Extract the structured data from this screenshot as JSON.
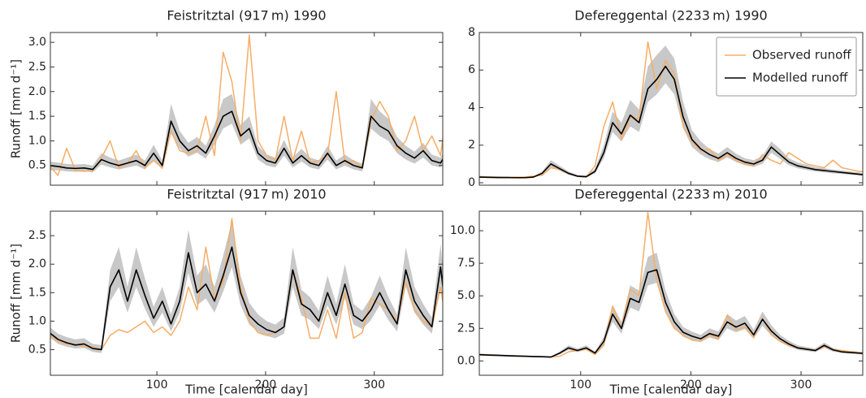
{
  "chart_data": [
    {
      "type": "line",
      "title": "Feistritztal (917 m) 1990",
      "ylabel": "Runoff [mm d⁻¹]",
      "xlim": [
        2,
        363
      ],
      "xticks": [
        100,
        200,
        300
      ],
      "xtick_labels": false,
      "ylim": [
        0.1,
        3.2
      ],
      "yticks": [
        0.5,
        {
          "value": 1,
          "label": "1.0"
        },
        1.5,
        {
          "value": 2,
          "label": "2.0"
        },
        2.5,
        {
          "value": 3,
          "label": "3.0"
        }
      ],
      "x": [
        1,
        9,
        17,
        25,
        33,
        41,
        49,
        57,
        65,
        73,
        81,
        89,
        97,
        105,
        113,
        121,
        129,
        137,
        145,
        153,
        161,
        169,
        177,
        185,
        193,
        201,
        209,
        217,
        225,
        233,
        241,
        249,
        257,
        265,
        273,
        281,
        289,
        297,
        305,
        313,
        321,
        329,
        337,
        345,
        353,
        361,
        365
      ],
      "band": {
        "color": "#c8c8c8",
        "lower": [
          0.4,
          0.4,
          0.38,
          0.37,
          0.38,
          0.36,
          0.52,
          0.46,
          0.42,
          0.46,
          0.5,
          0.42,
          0.62,
          0.42,
          1.15,
          0.85,
          0.68,
          0.76,
          0.64,
          0.92,
          1.25,
          1.35,
          0.92,
          1.05,
          0.62,
          0.5,
          0.46,
          0.7,
          0.46,
          0.58,
          0.46,
          0.42,
          0.62,
          0.42,
          0.5,
          0.42,
          0.38,
          1.25,
          1.1,
          1.0,
          0.75,
          0.62,
          0.54,
          0.66,
          0.5,
          0.46,
          0.58
        ],
        "upper": [
          0.58,
          0.56,
          0.53,
          0.52,
          0.53,
          0.5,
          0.75,
          0.66,
          0.6,
          0.66,
          0.72,
          0.6,
          0.92,
          0.6,
          1.75,
          1.2,
          0.96,
          1.08,
          0.9,
          1.32,
          1.85,
          1.95,
          1.32,
          1.5,
          0.9,
          0.72,
          0.66,
          1.02,
          0.66,
          0.84,
          0.66,
          0.6,
          0.9,
          0.6,
          0.72,
          0.6,
          0.54,
          1.85,
          1.6,
          1.45,
          1.08,
          0.9,
          0.78,
          0.96,
          0.72,
          0.66,
          0.84
        ]
      },
      "series": [
        {
          "color": "#f5ad66",
          "values": [
            0.5,
            0.3,
            0.85,
            0.4,
            0.38,
            0.4,
            0.65,
            1.0,
            0.45,
            0.55,
            0.8,
            0.45,
            0.6,
            0.45,
            1.2,
            0.8,
            0.75,
            0.8,
            1.5,
            0.7,
            2.8,
            2.2,
            1.0,
            3.15,
            1.0,
            0.7,
            0.6,
            1.5,
            0.6,
            1.2,
            0.55,
            0.6,
            0.7,
            2.0,
            0.55,
            0.6,
            0.45,
            1.4,
            1.8,
            1.5,
            0.8,
            1.0,
            1.5,
            0.8,
            1.1,
            0.7,
            1.4
          ]
        },
        {
          "color": "#000000",
          "values": [
            0.5,
            0.48,
            0.45,
            0.44,
            0.45,
            0.42,
            0.62,
            0.55,
            0.5,
            0.55,
            0.6,
            0.5,
            0.75,
            0.5,
            1.4,
            1.0,
            0.8,
            0.9,
            0.75,
            1.1,
            1.5,
            1.6,
            1.1,
            1.25,
            0.75,
            0.6,
            0.55,
            0.85,
            0.55,
            0.7,
            0.55,
            0.5,
            0.75,
            0.5,
            0.6,
            0.5,
            0.45,
            1.5,
            1.3,
            1.2,
            0.9,
            0.75,
            0.65,
            0.8,
            0.6,
            0.55,
            0.7
          ]
        }
      ]
    },
    {
      "type": "line",
      "title": "Defereggental (2233 m) 1990",
      "xlim": [
        8,
        356
      ],
      "xticks": [
        100,
        200,
        300
      ],
      "xtick_labels": false,
      "ylim": [
        -0.13,
        8
      ],
      "yticks": [
        0,
        2,
        4,
        6,
        8
      ],
      "legend": "upper right",
      "x": [
        1,
        9,
        17,
        25,
        33,
        41,
        49,
        57,
        65,
        73,
        81,
        89,
        97,
        105,
        113,
        121,
        129,
        137,
        145,
        153,
        161,
        169,
        177,
        185,
        193,
        201,
        209,
        217,
        225,
        233,
        241,
        249,
        257,
        265,
        273,
        281,
        289,
        297,
        305,
        313,
        321,
        329,
        337,
        345,
        353,
        361,
        365
      ],
      "band": {
        "color": "#c8c8c8",
        "lower": [
          0.26,
          0.26,
          0.25,
          0.24,
          0.24,
          0.23,
          0.23,
          0.26,
          0.42,
          0.85,
          0.64,
          0.42,
          0.3,
          0.27,
          0.5,
          1.3,
          2.7,
          2.2,
          3.0,
          2.7,
          4.3,
          4.7,
          5.3,
          4.7,
          2.9,
          1.9,
          1.5,
          1.25,
          1.1,
          1.35,
          1.1,
          0.93,
          0.85,
          1.0,
          1.6,
          1.27,
          0.93,
          0.76,
          0.68,
          0.6,
          0.55,
          0.5,
          0.47,
          0.42,
          0.38,
          0.34,
          0.32
        ],
        "upper": [
          0.35,
          0.35,
          0.34,
          0.33,
          0.33,
          0.32,
          0.32,
          0.35,
          0.6,
          1.2,
          0.9,
          0.6,
          0.42,
          0.38,
          0.75,
          2.0,
          3.8,
          3.2,
          4.4,
          3.9,
          6.2,
          6.8,
          7.3,
          6.6,
          4.3,
          2.8,
          2.2,
          1.8,
          1.55,
          1.9,
          1.55,
          1.3,
          1.2,
          1.42,
          2.2,
          1.8,
          1.3,
          1.08,
          0.95,
          0.83,
          0.77,
          0.71,
          0.65,
          0.6,
          0.54,
          0.48,
          0.45
        ]
      },
      "series": [
        {
          "name": "Observed runoff",
          "color": "#f5ad66",
          "values": [
            0.35,
            0.33,
            0.3,
            0.3,
            0.28,
            0.3,
            0.3,
            0.35,
            0.4,
            0.8,
            0.7,
            0.5,
            0.35,
            0.3,
            0.9,
            3.0,
            4.3,
            2.3,
            3.5,
            3.4,
            7.5,
            5.0,
            6.5,
            5.8,
            3.0,
            2.2,
            1.7,
            1.8,
            1.2,
            1.5,
            1.2,
            1.0,
            0.9,
            1.5,
            1.2,
            1.0,
            1.6,
            1.3,
            1.0,
            0.9,
            0.8,
            1.2,
            0.8,
            0.7,
            0.6,
            0.6,
            0.55
          ]
        },
        {
          "name": "Modelled runoff",
          "color": "#000000",
          "values": [
            0.3,
            0.3,
            0.29,
            0.28,
            0.28,
            0.27,
            0.27,
            0.3,
            0.5,
            1.0,
            0.75,
            0.5,
            0.35,
            0.32,
            0.6,
            1.6,
            3.2,
            2.6,
            3.6,
            3.2,
            5.0,
            5.5,
            6.2,
            5.5,
            3.5,
            2.3,
            1.8,
            1.5,
            1.3,
            1.6,
            1.3,
            1.1,
            1.0,
            1.2,
            1.9,
            1.5,
            1.1,
            0.9,
            0.8,
            0.7,
            0.65,
            0.6,
            0.55,
            0.5,
            0.45,
            0.4,
            0.38
          ]
        }
      ]
    },
    {
      "type": "line",
      "title": "Feistritztal (917 m) 2010",
      "ylabel": "Runoff [mm d⁻¹]",
      "xlabel": "Time [calendar day]",
      "xlim": [
        2,
        363
      ],
      "xticks": [
        100,
        200,
        300
      ],
      "xtick_labels": true,
      "ylim": [
        0.05,
        2.93
      ],
      "yticks": [
        0.5,
        {
          "value": 1,
          "label": "1.0"
        },
        1.5,
        {
          "value": 2,
          "label": "2.0"
        },
        2.5
      ],
      "x": [
        1,
        9,
        17,
        25,
        33,
        41,
        49,
        57,
        65,
        73,
        81,
        89,
        97,
        105,
        113,
        121,
        129,
        137,
        145,
        153,
        161,
        169,
        177,
        185,
        193,
        201,
        209,
        217,
        225,
        233,
        241,
        249,
        257,
        265,
        273,
        281,
        289,
        297,
        305,
        313,
        321,
        329,
        337,
        345,
        353,
        361,
        365
      ],
      "band": {
        "color": "#c8c8c8",
        "lower": [
          0.72,
          0.6,
          0.55,
          0.52,
          0.53,
          0.46,
          0.44,
          1.35,
          1.6,
          1.15,
          1.6,
          1.22,
          0.9,
          1.15,
          0.82,
          1.15,
          1.85,
          1.28,
          1.4,
          1.15,
          1.52,
          1.95,
          1.28,
          0.94,
          0.82,
          0.74,
          0.7,
          0.78,
          1.6,
          1.1,
          1.02,
          0.86,
          1.28,
          0.94,
          1.4,
          0.94,
          0.86,
          1.02,
          1.28,
          1.02,
          0.82,
          1.6,
          1.15,
          0.94,
          0.78,
          1.65,
          1.1
        ],
        "upper": [
          0.9,
          0.78,
          0.72,
          0.68,
          0.7,
          0.6,
          0.58,
          1.9,
          2.3,
          1.6,
          2.3,
          1.75,
          1.25,
          1.6,
          1.12,
          1.6,
          2.6,
          1.8,
          2.0,
          1.6,
          2.15,
          2.75,
          1.8,
          1.32,
          1.12,
          1.0,
          0.94,
          1.06,
          2.3,
          1.55,
          1.42,
          1.18,
          1.8,
          1.3,
          2.0,
          1.3,
          1.18,
          1.42,
          1.8,
          1.42,
          1.12,
          2.3,
          1.6,
          1.3,
          1.06,
          2.35,
          1.55
        ]
      },
      "series": [
        {
          "color": "#f5ad66",
          "values": [
            0.75,
            0.65,
            0.6,
            0.6,
            0.55,
            0.55,
            0.5,
            0.75,
            0.85,
            0.8,
            0.9,
            1.0,
            0.8,
            0.9,
            0.75,
            1.0,
            1.6,
            1.2,
            2.3,
            1.4,
            1.7,
            2.8,
            1.6,
            1.0,
            0.8,
            0.75,
            0.8,
            0.9,
            1.9,
            1.4,
            0.7,
            0.7,
            1.2,
            0.7,
            1.5,
            0.7,
            0.8,
            1.4,
            1.3,
            1.2,
            1.0,
            1.7,
            1.2,
            1.0,
            0.9,
            1.6,
            1.1
          ]
        },
        {
          "color": "#000000",
          "values": [
            0.8,
            0.68,
            0.62,
            0.58,
            0.6,
            0.52,
            0.5,
            1.6,
            1.9,
            1.35,
            1.9,
            1.45,
            1.05,
            1.35,
            0.95,
            1.35,
            2.2,
            1.5,
            1.65,
            1.35,
            1.8,
            2.3,
            1.5,
            1.1,
            0.95,
            0.85,
            0.8,
            0.9,
            1.9,
            1.3,
            1.2,
            1.0,
            1.5,
            1.1,
            1.65,
            1.1,
            1.0,
            1.2,
            1.5,
            1.2,
            0.95,
            1.9,
            1.35,
            1.1,
            0.9,
            1.95,
            1.3
          ]
        }
      ]
    },
    {
      "type": "line",
      "title": "Defereggental (2233 m) 2010",
      "xlabel": "Time [calendar day]",
      "xlim": [
        8,
        356
      ],
      "xticks": [
        100,
        200,
        300
      ],
      "xtick_labels": true,
      "ylim": [
        -1.1,
        11.5
      ],
      "yticks": [
        {
          "value": 0,
          "label": "0.0"
        },
        2.5,
        {
          "value": 5,
          "label": "5.0"
        },
        7.5,
        {
          "value": 10,
          "label": "10.0"
        }
      ],
      "x": [
        1,
        9,
        17,
        25,
        33,
        41,
        49,
        57,
        65,
        73,
        81,
        89,
        97,
        105,
        113,
        121,
        129,
        137,
        145,
        153,
        161,
        169,
        177,
        185,
        193,
        201,
        209,
        217,
        225,
        233,
        241,
        249,
        257,
        265,
        273,
        281,
        289,
        297,
        305,
        313,
        321,
        329,
        337,
        345,
        353,
        361,
        365
      ],
      "band": {
        "color": "#c8c8c8",
        "lower": [
          0.42,
          0.4,
          0.38,
          0.36,
          0.34,
          0.32,
          0.3,
          0.28,
          0.27,
          0.25,
          0.5,
          0.85,
          0.68,
          0.85,
          0.5,
          1.25,
          3.0,
          2.1,
          4.1,
          3.8,
          5.8,
          6.0,
          3.8,
          2.5,
          1.85,
          1.6,
          1.45,
          1.8,
          1.6,
          2.5,
          2.2,
          2.45,
          1.7,
          2.7,
          1.95,
          1.45,
          1.1,
          0.85,
          0.76,
          0.68,
          1.0,
          0.72,
          0.6,
          0.55,
          0.5,
          0.46,
          0.42
        ],
        "upper": [
          0.58,
          0.56,
          0.53,
          0.5,
          0.47,
          0.45,
          0.42,
          0.4,
          0.38,
          0.35,
          0.72,
          1.2,
          0.95,
          1.2,
          0.72,
          1.85,
          4.3,
          3.0,
          5.8,
          5.4,
          8.0,
          8.3,
          5.4,
          3.6,
          2.6,
          2.25,
          2.0,
          2.5,
          2.25,
          3.6,
          3.1,
          3.45,
          2.4,
          3.8,
          2.75,
          2.0,
          1.55,
          1.2,
          1.07,
          0.95,
          1.42,
          1.0,
          0.83,
          0.77,
          0.71,
          0.65,
          0.59
        ]
      },
      "series": [
        {
          "color": "#f5ad66",
          "values": [
            0.55,
            0.5,
            0.45,
            0.42,
            0.4,
            0.38,
            0.36,
            0.34,
            0.32,
            0.3,
            0.35,
            0.7,
            0.8,
            0.9,
            0.5,
            1.2,
            4.2,
            2.5,
            5.5,
            5.0,
            11.4,
            6.2,
            3.8,
            2.5,
            2.0,
            1.6,
            1.5,
            2.0,
            1.7,
            3.5,
            2.4,
            2.6,
            1.8,
            3.3,
            2.0,
            1.5,
            1.2,
            1.0,
            0.9,
            0.8,
            1.1,
            0.9,
            0.8,
            0.7,
            0.65,
            0.6,
            0.6
          ]
        },
        {
          "color": "#000000",
          "values": [
            0.5,
            0.48,
            0.45,
            0.43,
            0.4,
            0.38,
            0.36,
            0.34,
            0.32,
            0.3,
            0.6,
            1.0,
            0.8,
            1.0,
            0.6,
            1.5,
            3.6,
            2.5,
            4.8,
            4.5,
            6.8,
            7.0,
            4.5,
            3.0,
            2.2,
            1.9,
            1.7,
            2.1,
            1.9,
            3.0,
            2.6,
            2.9,
            2.0,
            3.2,
            2.3,
            1.7,
            1.3,
            1.0,
            0.9,
            0.8,
            1.2,
            0.85,
            0.7,
            0.65,
            0.6,
            0.55,
            0.5
          ]
        }
      ]
    }
  ]
}
